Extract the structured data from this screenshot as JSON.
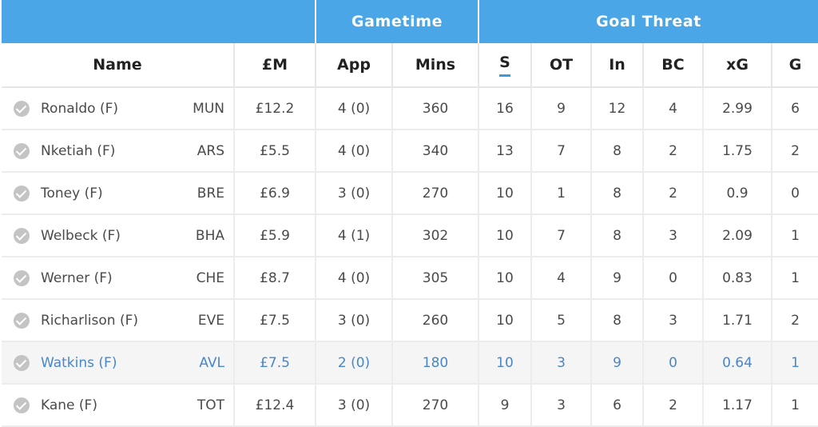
{
  "groups": {
    "gametime": "Gametime",
    "goal_threat": "Goal Threat"
  },
  "columns": {
    "name": "Name",
    "price": "£M",
    "app": "App",
    "mins": "Mins",
    "s": "S",
    "ot": "OT",
    "in": "In",
    "bc": "BC",
    "xg": "xG",
    "g": "G"
  },
  "sorted_column": "S",
  "accent_color": "#4aa6e6",
  "rows": [
    {
      "name": "Ronaldo (F)",
      "team": "MUN",
      "price": "£12.2",
      "app": "4 (0)",
      "mins": "360",
      "s": "16",
      "ot": "9",
      "in": "12",
      "bc": "4",
      "xg": "2.99",
      "g": "6"
    },
    {
      "name": "Nketiah (F)",
      "team": "ARS",
      "price": "£5.5",
      "app": "4 (0)",
      "mins": "340",
      "s": "13",
      "ot": "7",
      "in": "8",
      "bc": "2",
      "xg": "1.75",
      "g": "2"
    },
    {
      "name": "Toney (F)",
      "team": "BRE",
      "price": "£6.9",
      "app": "3 (0)",
      "mins": "270",
      "s": "10",
      "ot": "1",
      "in": "8",
      "bc": "2",
      "xg": "0.9",
      "g": "0"
    },
    {
      "name": "Welbeck (F)",
      "team": "BHA",
      "price": "£5.9",
      "app": "4 (1)",
      "mins": "302",
      "s": "10",
      "ot": "7",
      "in": "8",
      "bc": "3",
      "xg": "2.09",
      "g": "1"
    },
    {
      "name": "Werner (F)",
      "team": "CHE",
      "price": "£8.7",
      "app": "4 (0)",
      "mins": "305",
      "s": "10",
      "ot": "4",
      "in": "9",
      "bc": "0",
      "xg": "0.83",
      "g": "1"
    },
    {
      "name": "Richarlison (F)",
      "team": "EVE",
      "price": "£7.5",
      "app": "3 (0)",
      "mins": "260",
      "s": "10",
      "ot": "5",
      "in": "8",
      "bc": "3",
      "xg": "1.71",
      "g": "2"
    },
    {
      "name": "Watkins (F)",
      "team": "AVL",
      "price": "£7.5",
      "app": "2 (0)",
      "mins": "180",
      "s": "10",
      "ot": "3",
      "in": "9",
      "bc": "0",
      "xg": "0.64",
      "g": "1",
      "highlighted": true
    },
    {
      "name": "Kane (F)",
      "team": "TOT",
      "price": "£12.4",
      "app": "3 (0)",
      "mins": "270",
      "s": "9",
      "ot": "3",
      "in": "6",
      "bc": "2",
      "xg": "1.17",
      "g": "1"
    }
  ]
}
